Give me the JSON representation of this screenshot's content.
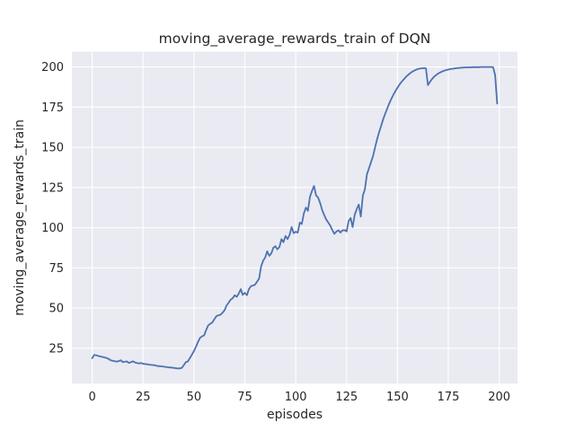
{
  "figure": {
    "title": "moving_average_rewards_train of DQN",
    "xlabel": "episodes",
    "ylabel": "moving_average_rewards_train"
  },
  "chart_data": {
    "type": "line",
    "title": "moving_average_rewards_train of DQN",
    "xlabel": "episodes",
    "ylabel": "moving_average_rewards_train",
    "x_ticks": [
      0,
      25,
      50,
      75,
      100,
      125,
      150,
      175,
      200
    ],
    "y_ticks": [
      25,
      50,
      75,
      100,
      125,
      150,
      175,
      200
    ],
    "xlim": [
      -10,
      209
    ],
    "ylim": [
      3,
      209.5
    ],
    "grid": true,
    "legend": false,
    "colors": {
      "figure_background": "#ffffff",
      "axes_background": "#eaeaf2",
      "grid": "#ffffff",
      "line": "#4c72b0",
      "text": "#262626"
    },
    "series": [
      {
        "name": "DQN",
        "color": "#4c72b0",
        "x_start": 0,
        "x_step": 1,
        "values": [
          18.8,
          20.9,
          20.6,
          20.2,
          19.9,
          19.6,
          19.3,
          18.9,
          18.4,
          17.6,
          17.2,
          16.9,
          16.7,
          17.0,
          17.5,
          16.4,
          16.6,
          16.8,
          15.9,
          16.3,
          16.9,
          16.2,
          15.8,
          15.5,
          15.8,
          15.3,
          15.2,
          15.0,
          14.8,
          14.6,
          14.5,
          14.4,
          13.9,
          13.9,
          13.7,
          13.6,
          13.4,
          13.2,
          13.0,
          13.0,
          12.8,
          12.6,
          12.4,
          12.5,
          12.7,
          14.5,
          16.3,
          16.8,
          18.9,
          21.0,
          23.3,
          26.0,
          28.9,
          31.5,
          32.4,
          33.0,
          36.4,
          39.2,
          40.2,
          41.0,
          43.0,
          44.9,
          45.5,
          45.8,
          47.0,
          48.6,
          51.5,
          53.3,
          55.2,
          56.1,
          58.0,
          57.0,
          59.0,
          61.7,
          58.2,
          59.5,
          58.0,
          61.7,
          63.6,
          64.0,
          64.5,
          66.4,
          68.3,
          75.8,
          79.5,
          81.5,
          85.3,
          82.5,
          84.0,
          87.5,
          88.5,
          86.5,
          88.0,
          92.9,
          91.0,
          94.8,
          92.9,
          95.5,
          100.4,
          96.6,
          97.5,
          97.0,
          103.2,
          102.3,
          108.9,
          112.5,
          110.5,
          119.2,
          122.9,
          126.0,
          120.1,
          118.8,
          115.4,
          111.0,
          107.9,
          105.1,
          103.2,
          101.3,
          98.5,
          96.2,
          97.6,
          98.4,
          97.0,
          98.4,
          98.5,
          97.7,
          104.1,
          106.0,
          100.4,
          108.0,
          111.6,
          114.4,
          106.9,
          120.1,
          123.8,
          133.2,
          137.0,
          140.7,
          144.5,
          150.0,
          155.0,
          159.5,
          163.5,
          167.5,
          171.0,
          174.3,
          177.4,
          180.2,
          182.7,
          185.0,
          187.1,
          189.0,
          190.7,
          192.2,
          193.6,
          194.8,
          195.9,
          196.8,
          197.6,
          198.2,
          198.7,
          199.0,
          199.2,
          199.3,
          199.1,
          188.7,
          190.8,
          192.5,
          193.9,
          195.0,
          195.9,
          196.6,
          197.2,
          197.7,
          198.1,
          198.4,
          198.7,
          198.9,
          199.1,
          199.3,
          199.4,
          199.5,
          199.6,
          199.7,
          199.7,
          199.8,
          199.8,
          199.9,
          199.9,
          199.9,
          199.9,
          200.0,
          200.0,
          200.0,
          200.0,
          200.0,
          200.0,
          199.9,
          195.0,
          177.2
        ]
      }
    ]
  }
}
